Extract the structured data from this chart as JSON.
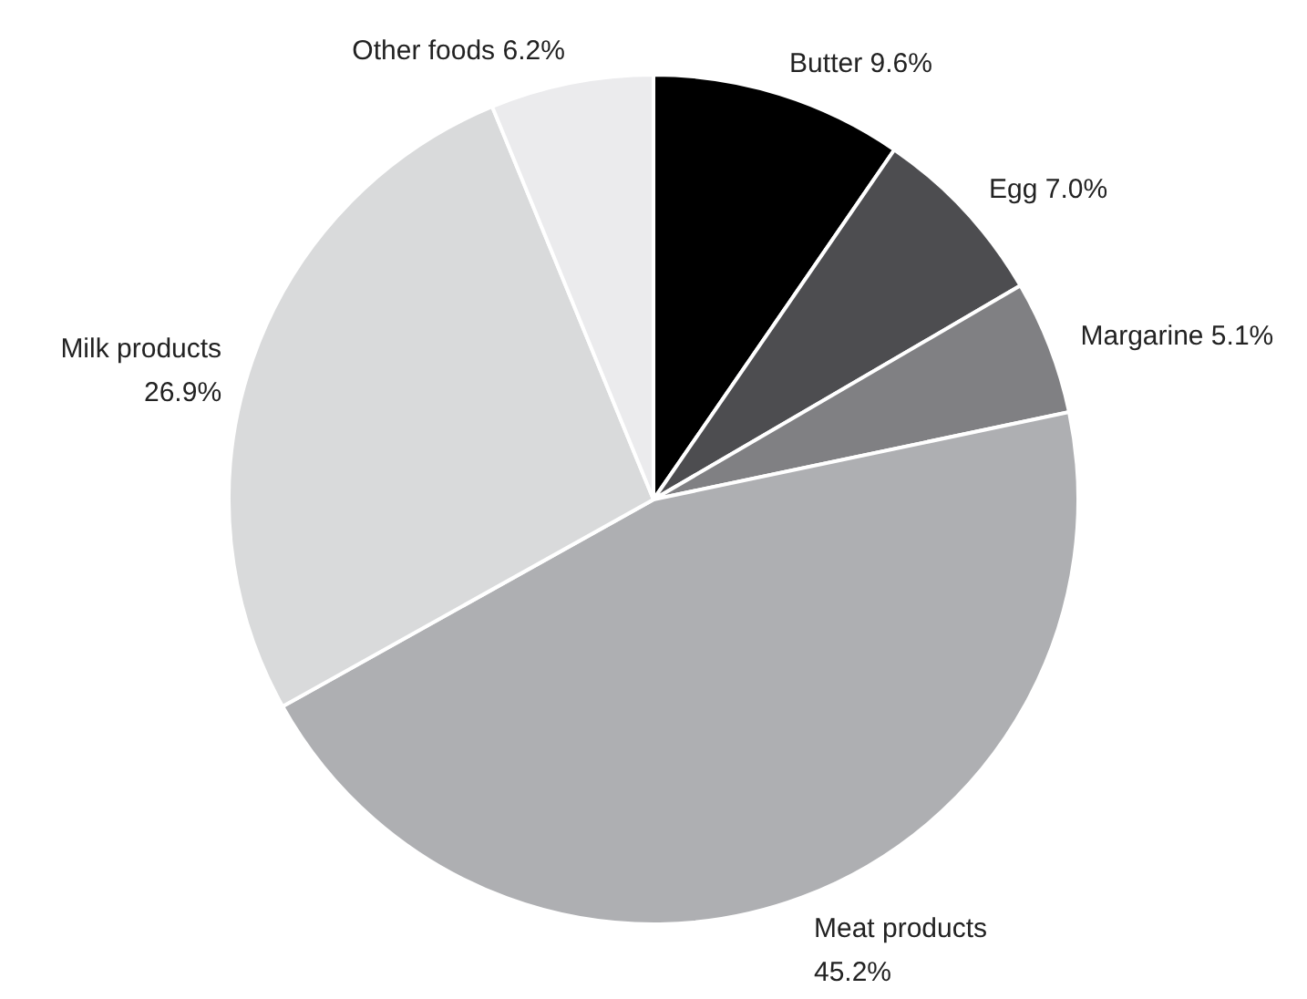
{
  "chart_data": {
    "type": "pie",
    "categories": [
      "Butter",
      "Egg",
      "Margarine",
      "Meat products",
      "Milk products",
      "Other foods"
    ],
    "values": [
      9.6,
      7.0,
      5.1,
      45.2,
      26.9,
      6.2
    ],
    "colors": [
      "#000000",
      "#4d4d50",
      "#808083",
      "#aeafb2",
      "#d9dadb",
      "#ebebed"
    ],
    "value_labels": [
      "9.6%",
      "7.0%",
      "5.1%",
      "45.2%",
      "26.9%",
      "6.2%"
    ],
    "legend": false
  }
}
